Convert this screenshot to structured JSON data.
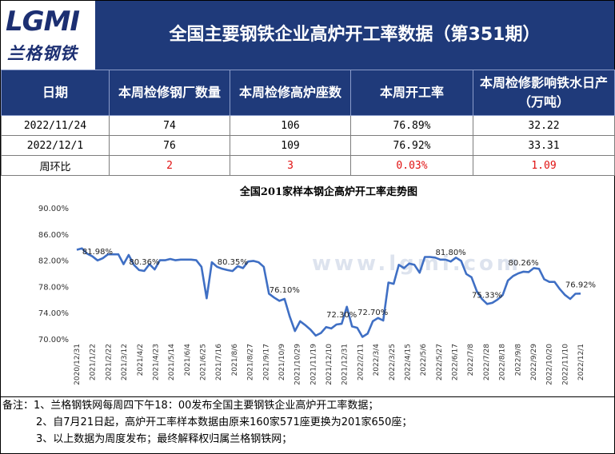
{
  "header": {
    "logo_text": "LGMI",
    "logo_cn": "兰格钢铁",
    "title": "全国主要钢铁企业高炉开工率数据（第351期）"
  },
  "table": {
    "headers": [
      "日期",
      "本周检修钢厂数量",
      "本周检修高炉座数",
      "本周开工率",
      "本周检修影响铁水日产（万吨）"
    ],
    "rows": [
      {
        "cells": [
          "2022/11/24",
          "74",
          "106",
          "76.89%",
          "32.22"
        ],
        "red": false
      },
      {
        "cells": [
          "2022/12/1",
          "76",
          "109",
          "76.92%",
          "33.31"
        ],
        "red": false
      },
      {
        "cells": [
          "周环比",
          "2",
          "3",
          "0.03%",
          "1.09"
        ],
        "red": true
      }
    ]
  },
  "chart_data": {
    "type": "line",
    "title": "全国201家样本钢企高炉开工率走势图",
    "watermark": "www.lgmi.com",
    "ylim": [
      70,
      90
    ],
    "yticks": [
      "70.00%",
      "74.00%",
      "78.00%",
      "82.00%",
      "86.00%",
      "90.00%"
    ],
    "xticks": [
      "2020/12/31",
      "2021/1/22",
      "2021/2/22",
      "2021/3/12",
      "2021/4/2",
      "2021/4/23",
      "2021/5/14",
      "2021/6/4",
      "2021/6/25",
      "2021/7/16",
      "2021/8/6",
      "2021/8/27",
      "2021/9/17",
      "2021/10/9",
      "2021/10/29",
      "2021/11/19",
      "2021/12/10",
      "2021/12/31",
      "2022/2/11",
      "2022/3/4",
      "2022/3/25",
      "2022/4/15",
      "2022/5/6",
      "2022/5/27",
      "2022/6/17",
      "2022/7/8",
      "2022/7/28",
      "2022/8/18",
      "2022/9/8",
      "2022/9/29",
      "2022/10/20",
      "2022/11/10",
      "2022/12/1"
    ],
    "color": "#3f6fc4",
    "series": [
      {
        "values": [
          83.6,
          83.8,
          83.0,
          82.6,
          81.98,
          82.3,
          82.9,
          82.9,
          82.9,
          81.4,
          82.8,
          81.3,
          80.5,
          80.36,
          81.4,
          80.6,
          82.0,
          82.0,
          82.2,
          82.0,
          82.1,
          82.1,
          82.1,
          82.0,
          81.0,
          76.2,
          81.7,
          81.0,
          80.7,
          80.5,
          80.35,
          81.1,
          80.8,
          81.8,
          81.9,
          81.7,
          81.0,
          76.9,
          76.3,
          75.8,
          76.1,
          73.4,
          71.2,
          72.7,
          72.1,
          71.4,
          70.5,
          70.9,
          71.8,
          71.6,
          72.2,
          72.3,
          74.9,
          71.9,
          71.7,
          70.3,
          70.8,
          72.7,
          73.2,
          72.8,
          78.6,
          78.4,
          81.3,
          80.8,
          81.5,
          81.3,
          80.1,
          82.5,
          82.5,
          82.4,
          82.1,
          82.1,
          81.8,
          82.4,
          81.9,
          79.9,
          79.4,
          77.3,
          76.1,
          75.33,
          75.5,
          76.0,
          76.7,
          78.9,
          79.6,
          80.0,
          80.26,
          80.2,
          80.8,
          80.7,
          79.1,
          78.7,
          78.7,
          77.6,
          76.7,
          76.1,
          76.89,
          76.92
        ]
      }
    ],
    "annotations": [
      {
        "index": 4,
        "label": "81.98%"
      },
      {
        "index": 13,
        "label": "80.36%"
      },
      {
        "index": 30,
        "label": "80.35%"
      },
      {
        "index": 40,
        "label": "76.10%"
      },
      {
        "index": 51,
        "label": "72.30%"
      },
      {
        "index": 57,
        "label": "72.70%"
      },
      {
        "index": 72,
        "label": "81.80%"
      },
      {
        "index": 79,
        "label": "75.33%"
      },
      {
        "index": 86,
        "label": "80.26%"
      },
      {
        "index": 97,
        "label": "76.92%"
      }
    ]
  },
  "notes": [
    "备注：1、兰格钢铁网每周四下午18：00发布全国主要钢铁企业高炉开工率数据；",
    "2、自7月21日起，高炉开工率样本数据由原来160家571座更换为201家650座；",
    "3、以上数据为周度发布；最终解释权归属兰格钢铁网；"
  ]
}
